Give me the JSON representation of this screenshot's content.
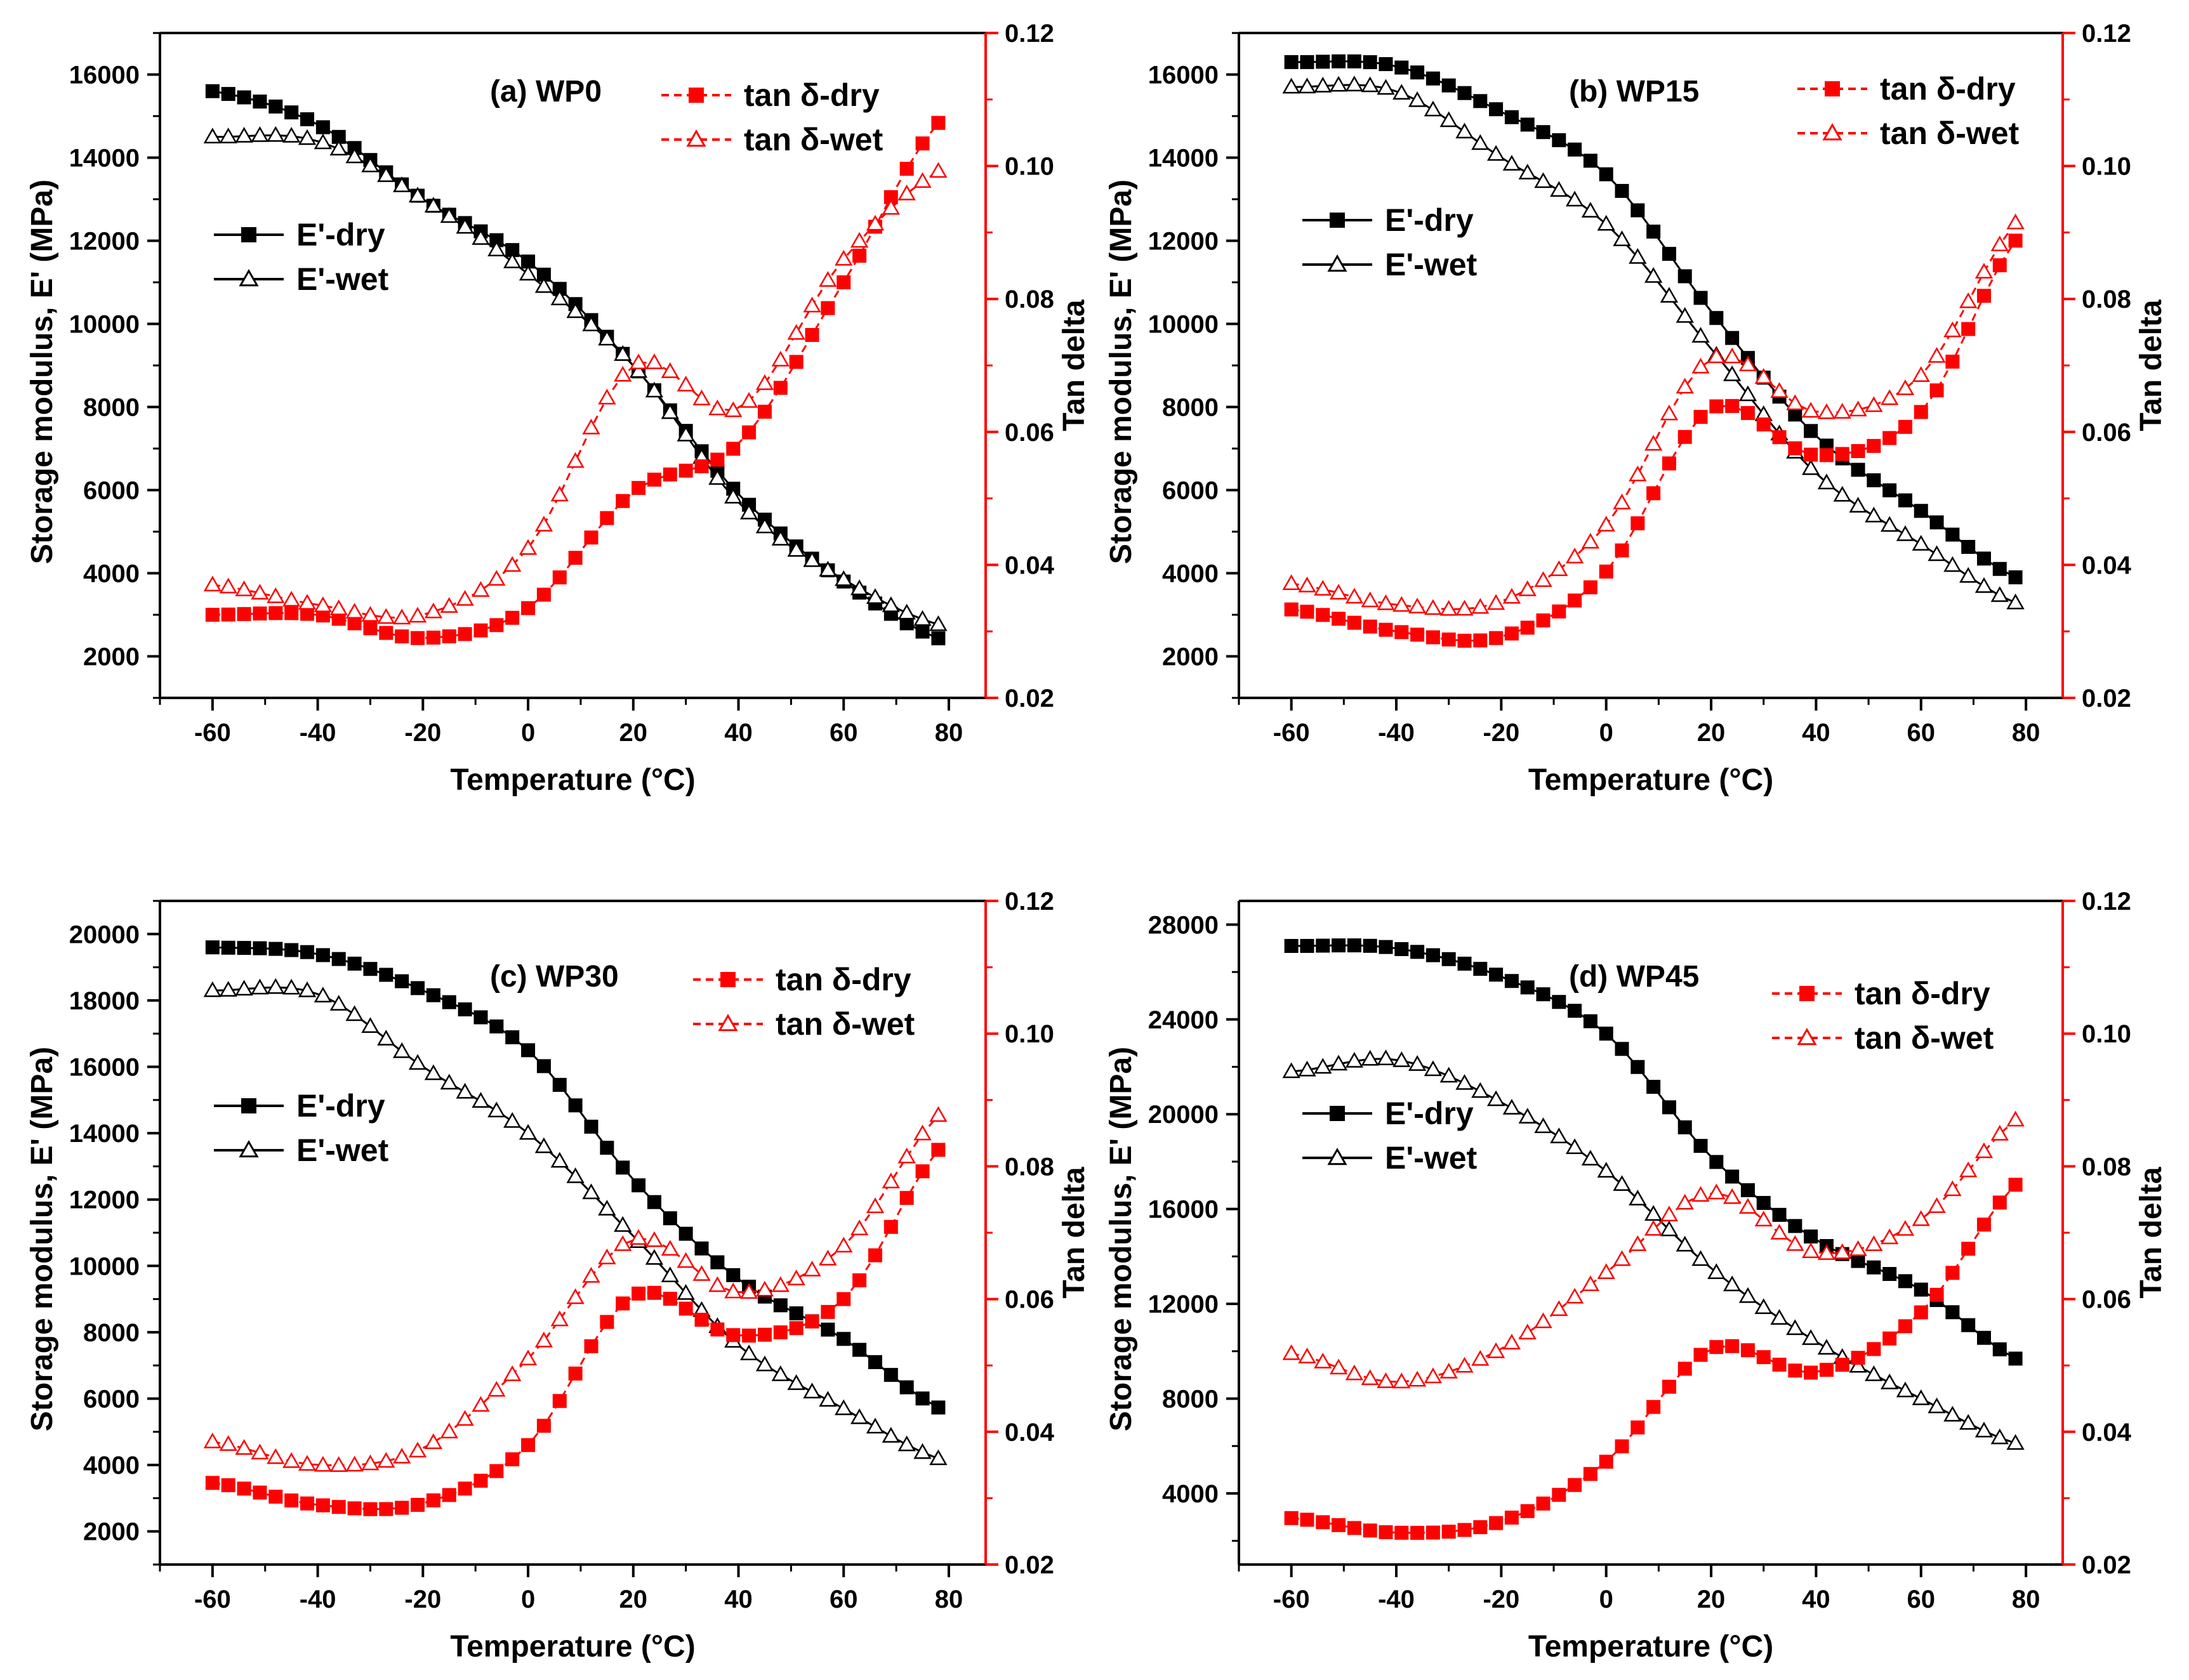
{
  "figure": {
    "colors": {
      "dry_modulus": "#000000",
      "wet_modulus": "#000000",
      "tan": "#ff0000",
      "axis": "#000000",
      "axis_right": "#ff0000"
    }
  },
  "chart_data": [
    {
      "type": "line",
      "title": "(a) WP0",
      "xlabel": "Temperature (°C)",
      "ylabel": "Storage modulus, E' (MPa)",
      "y2label": "Tan delta",
      "xlim": [
        -70,
        87
      ],
      "ylim": [
        1000,
        17000
      ],
      "y2lim": [
        0.02,
        0.12
      ],
      "xticks": [
        -60,
        -40,
        -20,
        0,
        20,
        40,
        60,
        80
      ],
      "yticks": [
        2000,
        4000,
        6000,
        8000,
        10000,
        12000,
        14000,
        16000
      ],
      "y2ticks": [
        0.02,
        0.04,
        0.06,
        0.08,
        0.1,
        0.12
      ],
      "legend_modulus": [
        "E'-dry",
        "E'-wet"
      ],
      "legend_tan": [
        "tan δ-dry",
        "tan δ-wet"
      ],
      "legend_modulus_placement": "left",
      "legend_tan_placement": "top-right",
      "x": [
        -60,
        -40,
        -20,
        0,
        20,
        40,
        60,
        80
      ],
      "series": [
        {
          "name": "E'-dry",
          "axis": "left",
          "marker": "filled-square",
          "line": "solid",
          "color": "#000000",
          "values": [
            15600,
            14800,
            13000,
            11500,
            9000,
            5900,
            3800,
            2350
          ]
        },
        {
          "name": "E'-wet",
          "axis": "left",
          "marker": "open-triangle",
          "line": "solid",
          "color": "#000000",
          "values": [
            14500,
            14400,
            13000,
            11200,
            9000,
            5700,
            3850,
            2700
          ]
        },
        {
          "name": "tan δ-dry",
          "axis": "right",
          "marker": "filled-square",
          "line": "dashed",
          "color": "#ff0000",
          "values": [
            0.0325,
            0.0325,
            0.029,
            0.0335,
            0.051,
            0.0582,
            0.0825,
            0.108
          ]
        },
        {
          "name": "tan δ-wet",
          "axis": "right",
          "marker": "open-triangle",
          "line": "dashed",
          "color": "#ff0000",
          "values": [
            0.037,
            0.034,
            0.0325,
            0.0425,
            0.07,
            0.0635,
            0.086,
            0.1
          ]
        }
      ]
    },
    {
      "type": "line",
      "title": "(b) WP15",
      "xlabel": "Temperature (°C)",
      "ylabel": "Storage modulus, E' (MPa)",
      "y2label": "Tan delta",
      "xlim": [
        -70,
        87
      ],
      "ylim": [
        1000,
        17000
      ],
      "y2lim": [
        0.02,
        0.12
      ],
      "xticks": [
        -60,
        -40,
        -20,
        0,
        20,
        40,
        60,
        80
      ],
      "yticks": [
        2000,
        4000,
        6000,
        8000,
        10000,
        12000,
        14000,
        16000
      ],
      "y2ticks": [
        0.02,
        0.04,
        0.06,
        0.08,
        0.1,
        0.12
      ],
      "legend_modulus": [
        "E'-dry",
        "E'-wet"
      ],
      "legend_tan": [
        "tan δ-dry",
        "tan δ-wet"
      ],
      "legend_modulus_placement": "left",
      "legend_tan_placement": "top-right",
      "x": [
        -60,
        -40,
        -20,
        0,
        20,
        40,
        60,
        80
      ],
      "series": [
        {
          "name": "E'-dry",
          "axis": "left",
          "marker": "filled-square",
          "line": "solid",
          "color": "#000000",
          "values": [
            16300,
            16200,
            15100,
            13600,
            10300,
            7300,
            5500,
            3800
          ]
        },
        {
          "name": "E'-wet",
          "axis": "left",
          "marker": "open-triangle",
          "line": "solid",
          "color": "#000000",
          "values": [
            15700,
            15600,
            14000,
            12400,
            9400,
            6400,
            4700,
            3200
          ]
        },
        {
          "name": "tan δ-dry",
          "axis": "right",
          "marker": "filled-square",
          "line": "dashed",
          "color": "#ff0000",
          "values": [
            0.0333,
            0.03,
            0.0292,
            0.039,
            0.0635,
            0.0565,
            0.063,
            0.0905
          ]
        },
        {
          "name": "tan δ-wet",
          "axis": "right",
          "marker": "open-triangle",
          "line": "dashed",
          "color": "#ff0000",
          "values": [
            0.0372,
            0.034,
            0.0345,
            0.046,
            0.071,
            0.063,
            0.0685,
            0.093
          ]
        }
      ]
    },
    {
      "type": "line",
      "title": "(c) WP30",
      "xlabel": "Temperature (°C)",
      "ylabel": "Storage modulus, E' (MPa)",
      "y2label": "Tan delta",
      "xlim": [
        -70,
        87
      ],
      "ylim": [
        1000,
        21000
      ],
      "y2lim": [
        0.02,
        0.12
      ],
      "xticks": [
        -60,
        -40,
        -20,
        0,
        20,
        40,
        60,
        80
      ],
      "yticks": [
        2000,
        4000,
        6000,
        8000,
        10000,
        12000,
        14000,
        16000,
        18000,
        20000
      ],
      "y2ticks": [
        0.02,
        0.04,
        0.06,
        0.08,
        0.1,
        0.12
      ],
      "legend_modulus": [
        "E'-dry",
        "E'-wet"
      ],
      "legend_tan": [
        "tan δ-dry",
        "tan δ-wet"
      ],
      "legend_modulus_placement": "left",
      "legend_tan_placement": "top-right",
      "x": [
        -60,
        -40,
        -20,
        0,
        20,
        40,
        60,
        80
      ],
      "series": [
        {
          "name": "E'-dry",
          "axis": "left",
          "marker": "filled-square",
          "line": "solid",
          "color": "#000000",
          "values": [
            19600,
            19400,
            18300,
            16500,
            12600,
            9600,
            7800,
            5600
          ]
        },
        {
          "name": "E'-wet",
          "axis": "left",
          "marker": "open-triangle",
          "line": "solid",
          "color": "#000000",
          "values": [
            18300,
            18200,
            16000,
            14000,
            10900,
            7600,
            5700,
            4100
          ]
        },
        {
          "name": "tan δ-dry",
          "axis": "right",
          "marker": "filled-square",
          "line": "dashed",
          "color": "#ff0000",
          "values": [
            0.0323,
            0.029,
            0.0292,
            0.038,
            0.0605,
            0.0545,
            0.06,
            0.084
          ]
        },
        {
          "name": "tan δ-wet",
          "axis": "right",
          "marker": "open-triangle",
          "line": "dashed",
          "color": "#ff0000",
          "values": [
            0.0385,
            0.035,
            0.0375,
            0.051,
            0.069,
            0.061,
            0.068,
            0.089
          ]
        }
      ]
    },
    {
      "type": "line",
      "title": "(d) WP45",
      "xlabel": "Temperature (°C)",
      "ylabel": "Storage modulus, E' (MPa)",
      "y2label": "Tan delta",
      "xlim": [
        -70,
        87
      ],
      "ylim": [
        1000,
        29000
      ],
      "y2lim": [
        0.02,
        0.12
      ],
      "xticks": [
        -60,
        -40,
        -20,
        0,
        20,
        40,
        60,
        80
      ],
      "yticks": [
        4000,
        8000,
        12000,
        16000,
        20000,
        24000,
        28000
      ],
      "y2ticks": [
        0.02,
        0.04,
        0.06,
        0.08,
        0.1,
        0.12
      ],
      "legend_modulus": [
        "E'-dry",
        "E'-wet"
      ],
      "legend_tan": [
        "tan δ-dry",
        "tan δ-wet"
      ],
      "legend_modulus_placement": "left",
      "legend_tan_placement": "top-right",
      "x": [
        -60,
        -40,
        -20,
        0,
        20,
        40,
        60,
        80
      ],
      "series": [
        {
          "name": "E'-dry",
          "axis": "left",
          "marker": "filled-square",
          "line": "solid",
          "color": "#000000",
          "values": [
            27100,
            27000,
            25800,
            23400,
            18200,
            14700,
            12600,
            9500
          ]
        },
        {
          "name": "E'-wet",
          "axis": "left",
          "marker": "open-triangle",
          "line": "solid",
          "color": "#000000",
          "values": [
            21800,
            22300,
            20500,
            17600,
            13500,
            10400,
            8000,
            6000
          ]
        },
        {
          "name": "tan δ-dry",
          "axis": "right",
          "marker": "filled-square",
          "line": "dashed",
          "color": "#ff0000",
          "values": [
            0.027,
            0.0248,
            0.0265,
            0.0355,
            0.0525,
            0.049,
            0.058,
            0.0785
          ]
        },
        {
          "name": "tan δ-wet",
          "axis": "right",
          "marker": "open-triangle",
          "line": "dashed",
          "color": "#ff0000",
          "values": [
            0.0518,
            0.0475,
            0.0525,
            0.064,
            0.076,
            0.067,
            0.072,
            0.088
          ]
        }
      ]
    }
  ]
}
